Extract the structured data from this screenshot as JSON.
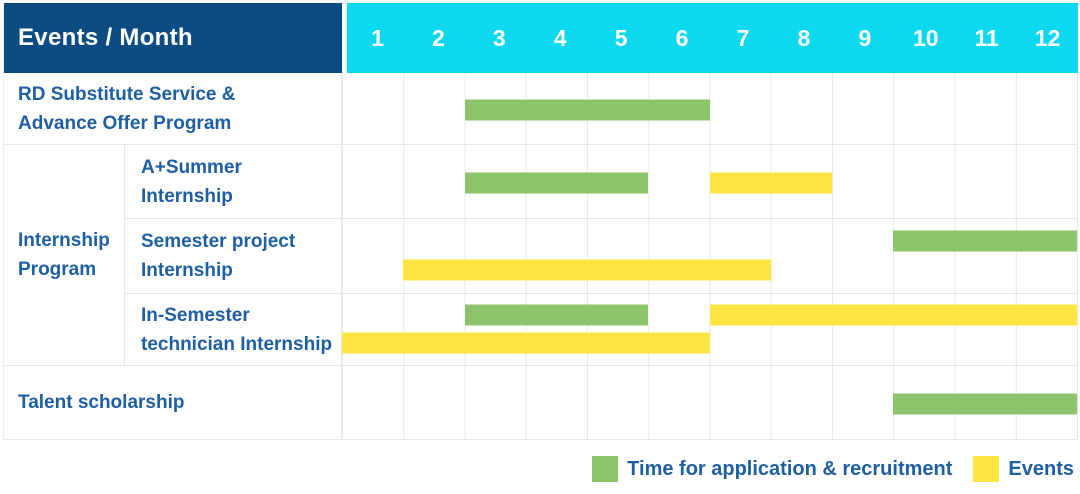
{
  "header": {
    "title": "Events / Month",
    "months": [
      "1",
      "2",
      "3",
      "4",
      "5",
      "6",
      "7",
      "8",
      "9",
      "10",
      "11",
      "12"
    ]
  },
  "colors": {
    "header_bg": "#0c4c82",
    "months_bg": "#0cd9ef",
    "label_text": "#1e5fa4",
    "recruitment": "#8cc46a",
    "event": "#ffe542",
    "grid_line": "#e9e9e9"
  },
  "rows": [
    {
      "label": "RD Substitute Service &\nAdvance Offer Program",
      "sub": false,
      "lines": 1,
      "bars": [
        {
          "type": "recruitment",
          "start_month": 3,
          "end_month": 6,
          "line": 0
        }
      ]
    },
    {
      "group": {
        "label": "Internship Program",
        "rowspan": 3
      },
      "label": "A+Summer\nInternship",
      "sub": true,
      "lines": 1,
      "bars": [
        {
          "type": "recruitment",
          "start_month": 3,
          "end_month": 5,
          "line": 0
        },
        {
          "type": "event",
          "start_month": 7,
          "end_month": 8,
          "line": 0
        }
      ]
    },
    {
      "label": "Semester project\nInternship",
      "sub": true,
      "lines": 2,
      "bars": [
        {
          "type": "recruitment",
          "start_month": 10,
          "end_month": 12,
          "line": 0
        },
        {
          "type": "event",
          "start_month": 2,
          "end_month": 7,
          "line": 1
        }
      ]
    },
    {
      "label": "In-Semester\ntechnician Internship",
      "sub": true,
      "lines": 2,
      "bars": [
        {
          "type": "recruitment",
          "start_month": 3,
          "end_month": 5,
          "line": 0
        },
        {
          "type": "event",
          "start_month": 7,
          "end_month": 12,
          "line": 0
        },
        {
          "type": "event",
          "start_month": 1,
          "end_month": 6,
          "line": 1
        }
      ]
    },
    {
      "label": "Talent scholarship",
      "sub": false,
      "lines": 1,
      "bars": [
        {
          "type": "recruitment",
          "start_month": 10,
          "end_month": 12,
          "line": 0
        }
      ]
    }
  ],
  "legend": [
    {
      "type": "recruitment",
      "label": "Time for application & recruitment"
    },
    {
      "type": "event",
      "label": "Events"
    }
  ],
  "chart_data": {
    "type": "table",
    "subtype": "gantt",
    "title": "Events / Month",
    "xlabel": "Month",
    "x_ticks": [
      1,
      2,
      3,
      4,
      5,
      6,
      7,
      8,
      9,
      10,
      11,
      12
    ],
    "x_range": [
      1,
      12
    ],
    "legend": [
      "Time for application & recruitment",
      "Events"
    ],
    "legend_position": "bottom-right",
    "series_colors": {
      "application_recruitment": "#8cc46a",
      "events": "#ffe542"
    },
    "tasks": [
      {
        "event": "RD Substitute Service & Advance Offer Program",
        "group": null,
        "application_recruitment_months": [
          [
            3,
            6
          ]
        ],
        "events_months": []
      },
      {
        "event": "A+Summer Internship",
        "group": "Internship Program",
        "application_recruitment_months": [
          [
            3,
            5
          ]
        ],
        "events_months": [
          [
            7,
            8
          ]
        ]
      },
      {
        "event": "Semester project Internship",
        "group": "Internship Program",
        "application_recruitment_months": [
          [
            10,
            12
          ]
        ],
        "events_months": [
          [
            2,
            7
          ]
        ]
      },
      {
        "event": "In-Semester technician Internship",
        "group": "Internship Program",
        "application_recruitment_months": [
          [
            3,
            5
          ]
        ],
        "events_months": [
          [
            1,
            6
          ],
          [
            7,
            12
          ]
        ]
      },
      {
        "event": "Talent scholarship",
        "group": null,
        "application_recruitment_months": [
          [
            10,
            12
          ]
        ],
        "events_months": []
      }
    ]
  }
}
